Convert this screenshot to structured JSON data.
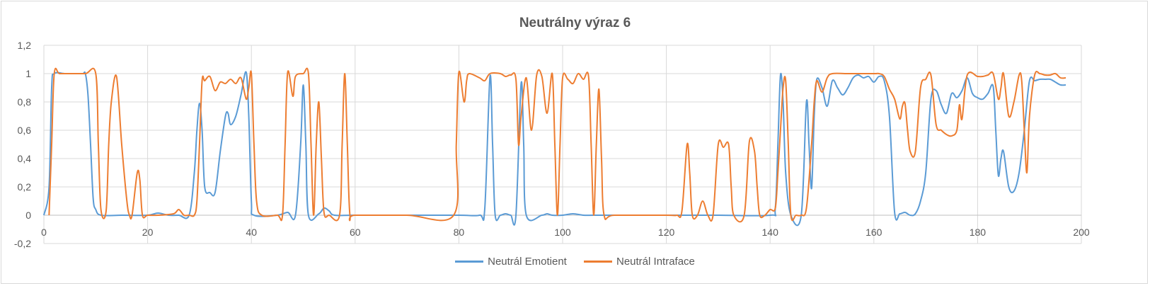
{
  "chart_data": {
    "type": "line",
    "title": "Neutrálny výraz 6",
    "xlabel": "",
    "ylabel": "",
    "xlim": [
      0,
      200
    ],
    "ylim": [
      -0.2,
      1.2
    ],
    "x_ticks": [
      0,
      20,
      40,
      60,
      80,
      100,
      120,
      140,
      160,
      180,
      200
    ],
    "y_ticks": [
      -0.2,
      0,
      0.2,
      0.4,
      0.6,
      0.8,
      1,
      1.2
    ],
    "y_tick_labels": [
      "-0,2",
      "0",
      "0,2",
      "0,4",
      "0,6",
      "0,8",
      "1",
      "1,2"
    ],
    "grid": true,
    "legend_position": "bottom",
    "series": [
      {
        "name": "Neutrál Emotient",
        "color": "#5b9bd5",
        "points": [
          [
            0,
            0
          ],
          [
            1,
            0.2
          ],
          [
            1.5,
            0.9
          ],
          [
            2,
            1.0
          ],
          [
            4,
            1.0
          ],
          [
            6,
            1.0
          ],
          [
            7.5,
            1.0
          ],
          [
            8,
            1.0
          ],
          [
            8.5,
            0.85
          ],
          [
            9,
            0.5
          ],
          [
            9.5,
            0.12
          ],
          [
            10,
            0.04
          ],
          [
            11,
            0.0
          ],
          [
            15,
            0.0
          ],
          [
            20,
            0.0
          ],
          [
            22,
            0.015
          ],
          [
            24,
            0.0
          ],
          [
            26,
            0.0
          ],
          [
            28,
            0.0
          ],
          [
            29,
            0.3
          ],
          [
            29.5,
            0.6
          ],
          [
            30,
            0.79
          ],
          [
            30.5,
            0.6
          ],
          [
            31,
            0.2
          ],
          [
            32,
            0.16
          ],
          [
            33,
            0.16
          ],
          [
            34,
            0.45
          ],
          [
            35,
            0.7
          ],
          [
            35.5,
            0.72
          ],
          [
            36,
            0.64
          ],
          [
            37,
            0.7
          ],
          [
            38,
            0.85
          ],
          [
            39,
            1.01
          ],
          [
            39.5,
            0.7
          ],
          [
            40,
            0.1
          ],
          [
            40.5,
            0.0
          ],
          [
            45,
            0.0
          ],
          [
            47,
            0.02
          ],
          [
            48.5,
            0.0
          ],
          [
            49.5,
            0.5
          ],
          [
            50,
            0.92
          ],
          [
            50.5,
            0.5
          ],
          [
            51,
            0.0
          ],
          [
            53,
            0.01
          ],
          [
            54,
            0.05
          ],
          [
            55,
            0.03
          ],
          [
            56,
            0.0
          ],
          [
            60,
            0.0
          ],
          [
            70,
            0.0
          ],
          [
            80,
            0.0
          ],
          [
            84,
            0.0
          ],
          [
            85,
            0.05
          ],
          [
            86,
            0.98
          ],
          [
            86.5,
            0.5
          ],
          [
            87,
            0.0
          ],
          [
            88,
            0.0
          ],
          [
            89,
            0.01
          ],
          [
            90,
            0.0
          ],
          [
            91,
            0.0
          ],
          [
            92,
            0.93
          ],
          [
            92.5,
            0.5
          ],
          [
            93,
            0.0
          ],
          [
            96,
            0.0
          ],
          [
            97,
            0.01
          ],
          [
            98,
            0.0
          ],
          [
            100,
            0.0
          ],
          [
            102,
            0.01
          ],
          [
            104,
            0.0
          ],
          [
            106,
            0.0
          ],
          [
            110,
            0.0
          ],
          [
            120,
            0.0
          ],
          [
            130,
            0.0
          ],
          [
            140,
            0.0
          ],
          [
            141,
            0.05
          ],
          [
            141.5,
            0.5
          ],
          [
            142,
            0.99
          ],
          [
            142.5,
            0.8
          ],
          [
            143,
            0.3
          ],
          [
            144,
            0.0
          ],
          [
            146,
            0.0
          ],
          [
            147,
            0.8
          ],
          [
            147.5,
            0.5
          ],
          [
            148,
            0.19
          ],
          [
            148.5,
            0.7
          ],
          [
            149,
            0.96
          ],
          [
            150,
            0.9
          ],
          [
            151,
            0.77
          ],
          [
            152,
            0.95
          ],
          [
            153,
            0.9
          ],
          [
            154,
            0.85
          ],
          [
            155,
            0.9
          ],
          [
            156,
            0.97
          ],
          [
            157,
            0.99
          ],
          [
            158,
            0.97
          ],
          [
            159,
            0.98
          ],
          [
            160,
            0.94
          ],
          [
            161,
            0.98
          ],
          [
            162,
            0.95
          ],
          [
            163,
            0.7
          ],
          [
            164,
            0.02
          ],
          [
            165,
            0.01
          ],
          [
            166,
            0.02
          ],
          [
            167,
            0.0
          ],
          [
            168,
            0.01
          ],
          [
            169,
            0.1
          ],
          [
            170,
            0.3
          ],
          [
            171,
            0.82
          ],
          [
            172,
            0.88
          ],
          [
            173,
            0.78
          ],
          [
            174,
            0.72
          ],
          [
            175,
            0.86
          ],
          [
            176,
            0.83
          ],
          [
            177,
            0.88
          ],
          [
            178,
            0.97
          ],
          [
            179,
            0.86
          ],
          [
            180,
            0.83
          ],
          [
            181,
            0.82
          ],
          [
            182,
            0.86
          ],
          [
            183,
            0.91
          ],
          [
            183.5,
            0.6
          ],
          [
            184,
            0.28
          ],
          [
            184.5,
            0.4
          ],
          [
            185,
            0.45
          ],
          [
            186,
            0.2
          ],
          [
            187,
            0.17
          ],
          [
            188,
            0.3
          ],
          [
            189,
            0.6
          ],
          [
            190,
            0.95
          ],
          [
            191,
            0.95
          ],
          [
            192,
            0.96
          ],
          [
            193,
            0.96
          ],
          [
            194,
            0.96
          ],
          [
            195,
            0.94
          ],
          [
            196,
            0.92
          ],
          [
            197,
            0.92
          ]
        ]
      },
      {
        "name": "Neutrál Intraface",
        "color": "#ed7d31",
        "points": [
          [
            1,
            0
          ],
          [
            1.5,
            0.5
          ],
          [
            2,
            1.0
          ],
          [
            3,
            1.0
          ],
          [
            5,
            1.0
          ],
          [
            8,
            1.0
          ],
          [
            10,
            1.0
          ],
          [
            10.5,
            0.5
          ],
          [
            11,
            0.04
          ],
          [
            12,
            0.03
          ],
          [
            12.5,
            0.5
          ],
          [
            13,
            0.8
          ],
          [
            14,
            0.98
          ],
          [
            15,
            0.5
          ],
          [
            16,
            0.1
          ],
          [
            16.5,
            0.0
          ],
          [
            17,
            0.0
          ],
          [
            18,
            0.3
          ],
          [
            18.5,
            0.25
          ],
          [
            19,
            0.0
          ],
          [
            20,
            0.0
          ],
          [
            22,
            0.0
          ],
          [
            25,
            0.01
          ],
          [
            26,
            0.04
          ],
          [
            27,
            0.0
          ],
          [
            28,
            0.0
          ],
          [
            29,
            0.0
          ],
          [
            29.5,
            0.1
          ],
          [
            30,
            0.5
          ],
          [
            30.5,
            0.95
          ],
          [
            31,
            0.95
          ],
          [
            32,
            0.98
          ],
          [
            33,
            0.88
          ],
          [
            34,
            0.94
          ],
          [
            35,
            0.93
          ],
          [
            36,
            0.96
          ],
          [
            37,
            0.93
          ],
          [
            38,
            0.97
          ],
          [
            39,
            0.82
          ],
          [
            39.5,
            0.9
          ],
          [
            40,
            1.0
          ],
          [
            40.5,
            0.5
          ],
          [
            41,
            0.1
          ],
          [
            42,
            0.0
          ],
          [
            45,
            0.0
          ],
          [
            46,
            0.0
          ],
          [
            46.5,
            0.5
          ],
          [
            47,
            1.01
          ],
          [
            48,
            0.84
          ],
          [
            48.5,
            0.98
          ],
          [
            50,
            1.0
          ],
          [
            51,
            1.0
          ],
          [
            51.5,
            0.5
          ],
          [
            52,
            0.0
          ],
          [
            52.5,
            0.5
          ],
          [
            53,
            0.8
          ],
          [
            53.5,
            0.4
          ],
          [
            54,
            0.02
          ],
          [
            55,
            0.0
          ],
          [
            57,
            0.0
          ],
          [
            57.5,
            0.5
          ],
          [
            58,
            1.0
          ],
          [
            58.5,
            0.5
          ],
          [
            59,
            0.0
          ],
          [
            60,
            0.0
          ],
          [
            70,
            0.0
          ],
          [
            79,
            0.0
          ],
          [
            79.5,
            0.5
          ],
          [
            80,
            1.01
          ],
          [
            81,
            0.8
          ],
          [
            81.5,
            0.95
          ],
          [
            82,
            1.0
          ],
          [
            84,
            0.97
          ],
          [
            85,
            0.95
          ],
          [
            86,
            1.0
          ],
          [
            88,
            1.0
          ],
          [
            89,
            0.98
          ],
          [
            90,
            0.99
          ],
          [
            91,
            0.96
          ],
          [
            91.5,
            0.5
          ],
          [
            92,
            0.7
          ],
          [
            93,
            0.97
          ],
          [
            94,
            0.6
          ],
          [
            95,
            0.99
          ],
          [
            96,
            0.98
          ],
          [
            97,
            0.72
          ],
          [
            98,
            1.0
          ],
          [
            98.5,
            0.5
          ],
          [
            99,
            0.0
          ],
          [
            99.5,
            0.5
          ],
          [
            100,
            0.97
          ],
          [
            101,
            0.96
          ],
          [
            102,
            0.93
          ],
          [
            103,
            1.0
          ],
          [
            104,
            0.96
          ],
          [
            105,
            0.98
          ],
          [
            105.5,
            0.5
          ],
          [
            106,
            0.0
          ],
          [
            106.5,
            0.5
          ],
          [
            107,
            0.89
          ],
          [
            107.5,
            0.4
          ],
          [
            108,
            0.0
          ],
          [
            110,
            0.0
          ],
          [
            120,
            0.0
          ],
          [
            122,
            0.0
          ],
          [
            123,
            0.03
          ],
          [
            124,
            0.5
          ],
          [
            124.5,
            0.3
          ],
          [
            125,
            0.0
          ],
          [
            126,
            0.0
          ],
          [
            127,
            0.1
          ],
          [
            128,
            0.0
          ],
          [
            129,
            0.0
          ],
          [
            130,
            0.5
          ],
          [
            131,
            0.48
          ],
          [
            132,
            0.5
          ],
          [
            132.5,
            0.2
          ],
          [
            133,
            0.0
          ],
          [
            135,
            0.0
          ],
          [
            136,
            0.52
          ],
          [
            137,
            0.45
          ],
          [
            137.5,
            0.2
          ],
          [
            138,
            0.0
          ],
          [
            139,
            0.0
          ],
          [
            140,
            0.04
          ],
          [
            141,
            0.05
          ],
          [
            141.5,
            0.3
          ],
          [
            142,
            0.6
          ],
          [
            142.5,
            0.9
          ],
          [
            143,
            0.95
          ],
          [
            143.5,
            0.5
          ],
          [
            144,
            0.0
          ],
          [
            145,
            0.0
          ],
          [
            146,
            0.0
          ],
          [
            147,
            0.05
          ],
          [
            148,
            0.5
          ],
          [
            148.5,
            0.8
          ],
          [
            149,
            0.95
          ],
          [
            150,
            0.87
          ],
          [
            151,
            0.97
          ],
          [
            152,
            1.0
          ],
          [
            155,
            1.0
          ],
          [
            160,
            1.0
          ],
          [
            161,
            1.0
          ],
          [
            162,
            0.98
          ],
          [
            163,
            0.89
          ],
          [
            164,
            0.82
          ],
          [
            165,
            0.68
          ],
          [
            165.5,
            0.77
          ],
          [
            166,
            0.79
          ],
          [
            166.5,
            0.6
          ],
          [
            167,
            0.45
          ],
          [
            168,
            0.45
          ],
          [
            169,
            0.9
          ],
          [
            170,
            0.96
          ],
          [
            171,
            0.99
          ],
          [
            172,
            0.64
          ],
          [
            173,
            0.6
          ],
          [
            174,
            0.57
          ],
          [
            175,
            0.56
          ],
          [
            176,
            0.6
          ],
          [
            176.5,
            0.78
          ],
          [
            177,
            0.68
          ],
          [
            178,
            0.99
          ],
          [
            180,
            0.98
          ],
          [
            181,
            0.98
          ],
          [
            182,
            0.99
          ],
          [
            183,
            1.0
          ],
          [
            184,
            0.82
          ],
          [
            184.5,
            0.9
          ],
          [
            185,
            1.0
          ],
          [
            186,
            0.7
          ],
          [
            187,
            0.8
          ],
          [
            188,
            0.99
          ],
          [
            188.5,
            0.95
          ],
          [
            189,
            0.6
          ],
          [
            189.5,
            0.3
          ],
          [
            190,
            0.7
          ],
          [
            191,
            0.99
          ],
          [
            192,
            1.0
          ],
          [
            193,
            0.99
          ],
          [
            194,
            0.99
          ],
          [
            195,
            1.0
          ],
          [
            196,
            0.97
          ],
          [
            197,
            0.97
          ]
        ]
      }
    ]
  }
}
